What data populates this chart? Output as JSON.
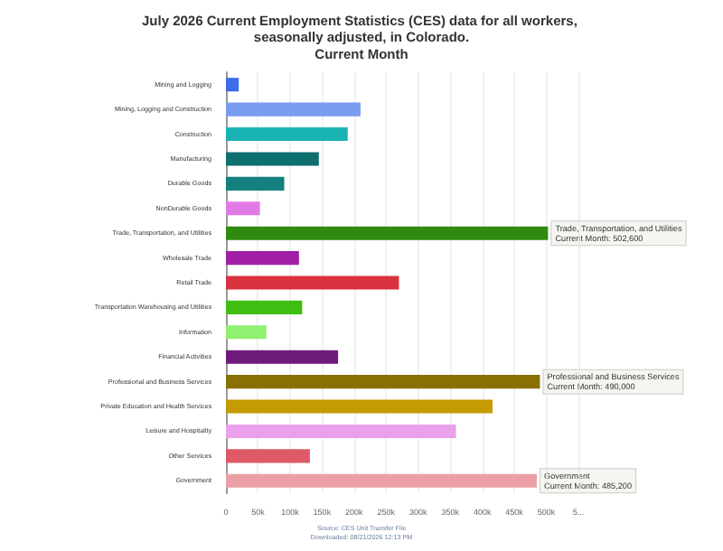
{
  "chart_data": {
    "type": "bar",
    "orientation": "horizontal",
    "title": "July 2026 Current Employment Statistics (CES) data for all workers, seasonally adjusted, in Colorado.",
    "subtitle": "Current Month",
    "categories": [
      "Mining and Logging",
      "Mining, Logging and Construction",
      "Construction",
      "Manufacturing",
      "Durable Goods",
      "NonDurable Goods",
      "Trade, Transportation, and Utilities",
      "Wholesale Trade",
      "Retail Trade",
      "Transportation Warehousing and Utilities",
      "Information",
      "Financial Activities",
      "Professional and Business Services",
      "Private Education and Health Services",
      "Leisure and Hospitality",
      "Other Services",
      "Government"
    ],
    "values": [
      20000,
      210000,
      190000,
      145000,
      91000,
      53000,
      502600,
      114000,
      270000,
      119000,
      63000,
      175000,
      490000,
      416000,
      359000,
      131000,
      485200
    ],
    "colors": [
      "#3b6ee8",
      "#7a9cf0",
      "#1ab3b3",
      "#0f6e6e",
      "#14807f",
      "#e27ae6",
      "#2e8b0f",
      "#a01fa6",
      "#d9323f",
      "#3fbf12",
      "#90f070",
      "#6e1a7a",
      "#8a7000",
      "#c49a00",
      "#eaa0ea",
      "#dd5a66",
      "#eba0a6"
    ],
    "xlim": [
      0,
      550000
    ],
    "xticks": [
      0,
      {
        "value": 50000,
        "label": "50k"
      },
      {
        "value": 100000,
        "label": "100k"
      },
      {
        "value": 150000,
        "label": "150k"
      },
      {
        "value": 200000,
        "label": "200k"
      },
      {
        "value": 250000,
        "label": "250k"
      },
      {
        "value": 300000,
        "label": "300k"
      },
      {
        "value": 350000,
        "label": "350k"
      },
      {
        "value": 400000,
        "label": "400k"
      },
      {
        "value": 450000,
        "label": "450k"
      },
      {
        "value": 500000,
        "label": "500k"
      },
      {
        "value": 550000,
        "label": "5..."
      }
    ],
    "grid": "x",
    "annotations": [
      {
        "text": "Trade, Transportation, and Utilities\nCurrent Month: 502,600",
        "x": 502600,
        "y": "Trade, Transportation, and Utilities"
      },
      {
        "text": "Professional and Business Services\nCurrent Month: 490,000",
        "x": 490000,
        "y": "Professional and Business Services"
      },
      {
        "text": "Government\nCurrent Month: 485,200",
        "x": 485200,
        "y": "Government"
      },
      "Source: CES Unit Transfer File\nDownloaded: 08/21/2026 12:13 PM"
    ]
  }
}
